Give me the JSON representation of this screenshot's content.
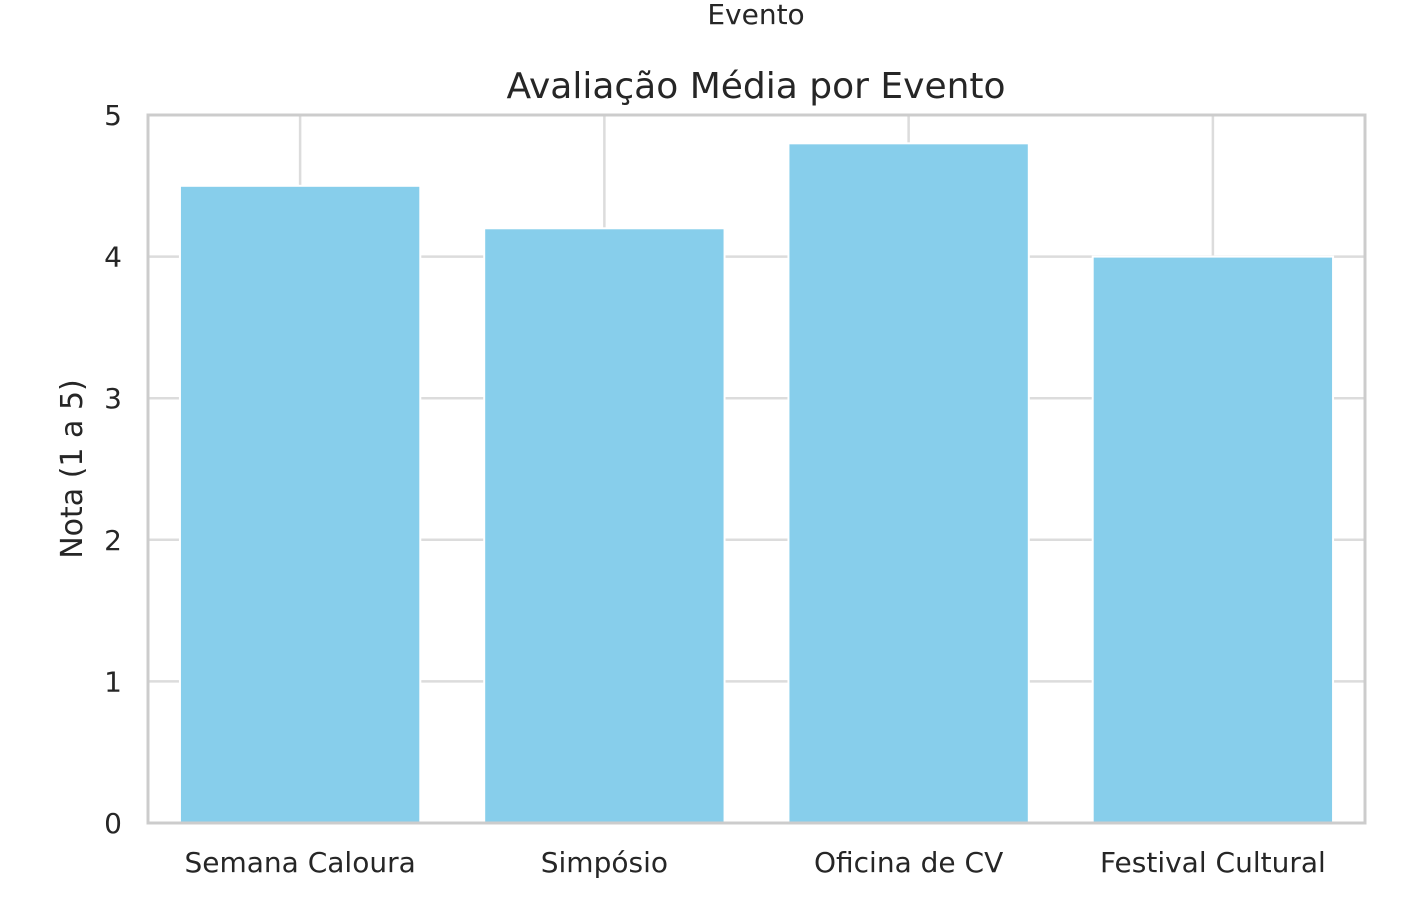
{
  "chart_data": {
    "type": "bar",
    "title": "Avaliação Média por Evento",
    "xlabel": "Evento",
    "ylabel": "Nota (1 a 5)",
    "categories": [
      "Semana Caloura",
      "Simpósio",
      "Oficina de CV",
      "Festival Cultural"
    ],
    "values": [
      4.5,
      4.2,
      4.8,
      4.0
    ],
    "ylim": [
      0,
      5
    ],
    "yticks": [
      "0",
      "1",
      "2",
      "3",
      "4",
      "5"
    ],
    "grid": true,
    "legend": "none",
    "colors": {
      "bar": "#87CEEB",
      "grid": "#dcdcdc",
      "frame": "#cccccc",
      "text": "#262626"
    }
  }
}
